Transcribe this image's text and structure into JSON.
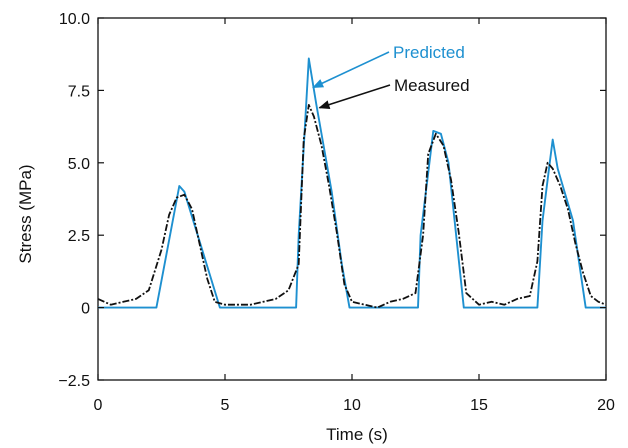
{
  "chart_data": {
    "type": "line",
    "title": "",
    "xlabel": "Time (s)",
    "ylabel": "Stress (MPa)",
    "xlim": [
      0,
      20
    ],
    "ylim": [
      -2.5,
      10.0
    ],
    "grid": false,
    "x_ticks": [
      0,
      5,
      10,
      15,
      20
    ],
    "x_tick_labels": [
      "0",
      "5",
      "10",
      "15",
      "20"
    ],
    "y_ticks": [
      -2.5,
      0,
      2.5,
      5.0,
      7.5,
      10.0
    ],
    "y_tick_labels": [
      "−2.5",
      "0",
      "2.5",
      "5.0",
      "7.5",
      "10.0"
    ],
    "annotations": [
      {
        "text": "Predicted",
        "color": "#1e90d0",
        "points_to": [
          8.35,
          7.6
        ]
      },
      {
        "text": "Measured",
        "color": "#111111",
        "points_to": [
          8.6,
          6.9
        ]
      }
    ],
    "series": [
      {
        "name": "Predicted",
        "color": "#1e90d0",
        "style": "solid",
        "x": [
          0,
          2.3,
          3.2,
          3.4,
          4.8,
          7.8,
          7.9,
          8.3,
          8.6,
          9.2,
          9.6,
          9.9,
          12.6,
          12.7,
          13.2,
          13.5,
          13.8,
          14.4,
          17.3,
          17.5,
          17.8,
          17.9,
          18.1,
          18.7,
          19.2,
          20
        ],
        "y": [
          0,
          0,
          4.2,
          4.0,
          0,
          0,
          2.5,
          8.6,
          7.0,
          4.0,
          1.5,
          0,
          0,
          2.5,
          6.1,
          6.0,
          5.0,
          0,
          0,
          3.0,
          5.1,
          5.8,
          4.8,
          3.0,
          0,
          0
        ]
      },
      {
        "name": "Measured",
        "color": "#111111",
        "style": "dashed",
        "x": [
          0,
          0.5,
          1.0,
          1.5,
          2.0,
          2.5,
          2.8,
          3.1,
          3.4,
          3.7,
          4.0,
          4.3,
          4.6,
          5.0,
          6.0,
          7.0,
          7.5,
          7.9,
          8.1,
          8.3,
          8.5,
          8.8,
          9.1,
          9.4,
          9.7,
          10.0,
          10.5,
          11.0,
          11.5,
          12.0,
          12.5,
          12.8,
          13.0,
          13.3,
          13.6,
          13.9,
          14.2,
          14.5,
          15.0,
          15.5,
          16.0,
          16.5,
          17.0,
          17.3,
          17.5,
          17.7,
          17.9,
          18.2,
          18.5,
          18.8,
          19.1,
          19.4,
          19.7,
          20.0
        ],
        "y": [
          0.3,
          0.1,
          0.2,
          0.3,
          0.6,
          2.0,
          3.2,
          3.8,
          3.9,
          3.4,
          2.2,
          1.0,
          0.2,
          0.1,
          0.1,
          0.3,
          0.6,
          1.5,
          5.8,
          7.0,
          6.6,
          5.6,
          4.2,
          2.6,
          0.8,
          0.2,
          0.1,
          0.0,
          0.2,
          0.3,
          0.5,
          2.5,
          5.3,
          6.0,
          5.6,
          4.4,
          2.6,
          0.5,
          0.1,
          0.2,
          0.1,
          0.3,
          0.4,
          1.6,
          4.2,
          5.0,
          4.8,
          4.2,
          3.4,
          2.2,
          1.2,
          0.4,
          0.2,
          0.1
        ]
      }
    ]
  }
}
